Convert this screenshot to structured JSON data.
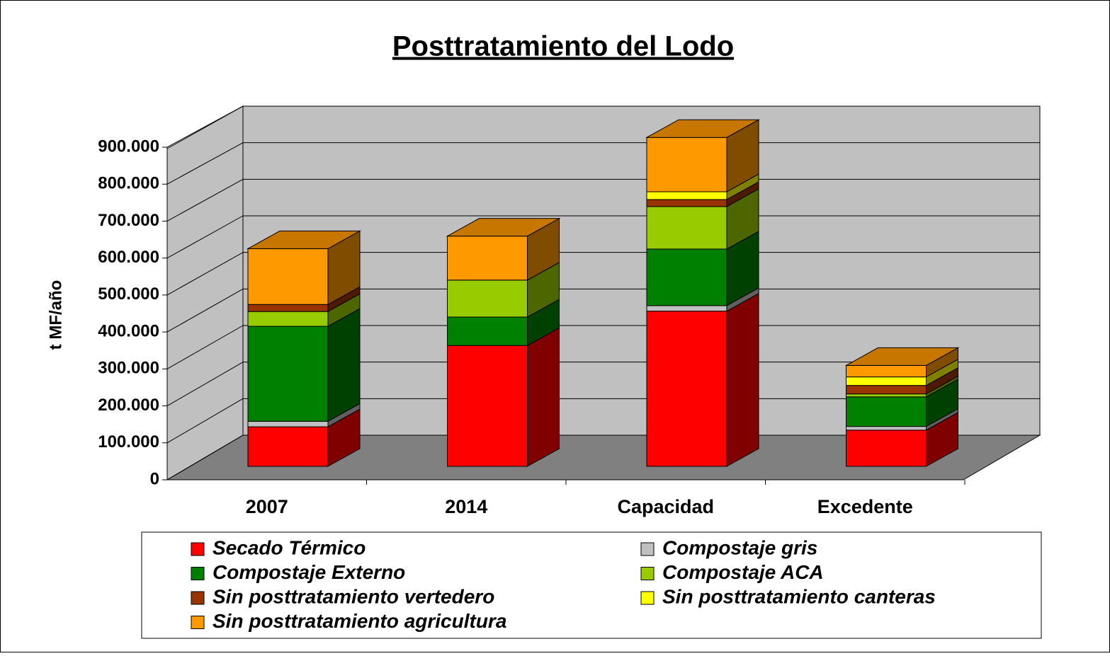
{
  "chart_data": {
    "type": "bar3d_stacked",
    "title": "Posttratamiento del Lodo",
    "y_label": "t MF/año",
    "categories": [
      "2007",
      "2014",
      "Capacidad",
      "Excedente"
    ],
    "series": [
      {
        "name": "Secado Térmico",
        "color": "#ff0000",
        "values": [
          107000,
          327000,
          420000,
          98000
        ]
      },
      {
        "name": "Compostaje gris",
        "color": "#c0c0c0",
        "values": [
          15000,
          0,
          15000,
          10000
        ]
      },
      {
        "name": "Compostaje Externo",
        "color": "#008000",
        "values": [
          257000,
          77000,
          153000,
          80000
        ]
      },
      {
        "name": "Compostaje ACA",
        "color": "#99cc00",
        "values": [
          40000,
          100000,
          115000,
          8000
        ]
      },
      {
        "name": "Sin posttratamiento vertedero",
        "color": "#993300",
        "values": [
          19000,
          0,
          19000,
          23000
        ]
      },
      {
        "name": "Sin posttratamiento canteras",
        "color": "#ffff00",
        "values": [
          0,
          0,
          21000,
          23000
        ]
      },
      {
        "name": "Sin posttratamiento agricultura",
        "color": "#ff9900",
        "values": [
          151000,
          119000,
          147000,
          31000
        ]
      }
    ],
    "ylim": [
      0,
      900000
    ],
    "yticks": [
      {
        "value": 0,
        "label": "0"
      },
      {
        "value": 100000,
        "label": "100.000"
      },
      {
        "value": 200000,
        "label": "200.000"
      },
      {
        "value": 300000,
        "label": "300.000"
      },
      {
        "value": 400000,
        "label": "400.000"
      },
      {
        "value": 500000,
        "label": "500.000"
      },
      {
        "value": 600000,
        "label": "600.000"
      },
      {
        "value": 700000,
        "label": "700.000"
      },
      {
        "value": 800000,
        "label": "800.000"
      },
      {
        "value": 900000,
        "label": "900.000"
      }
    ],
    "grid": true
  }
}
